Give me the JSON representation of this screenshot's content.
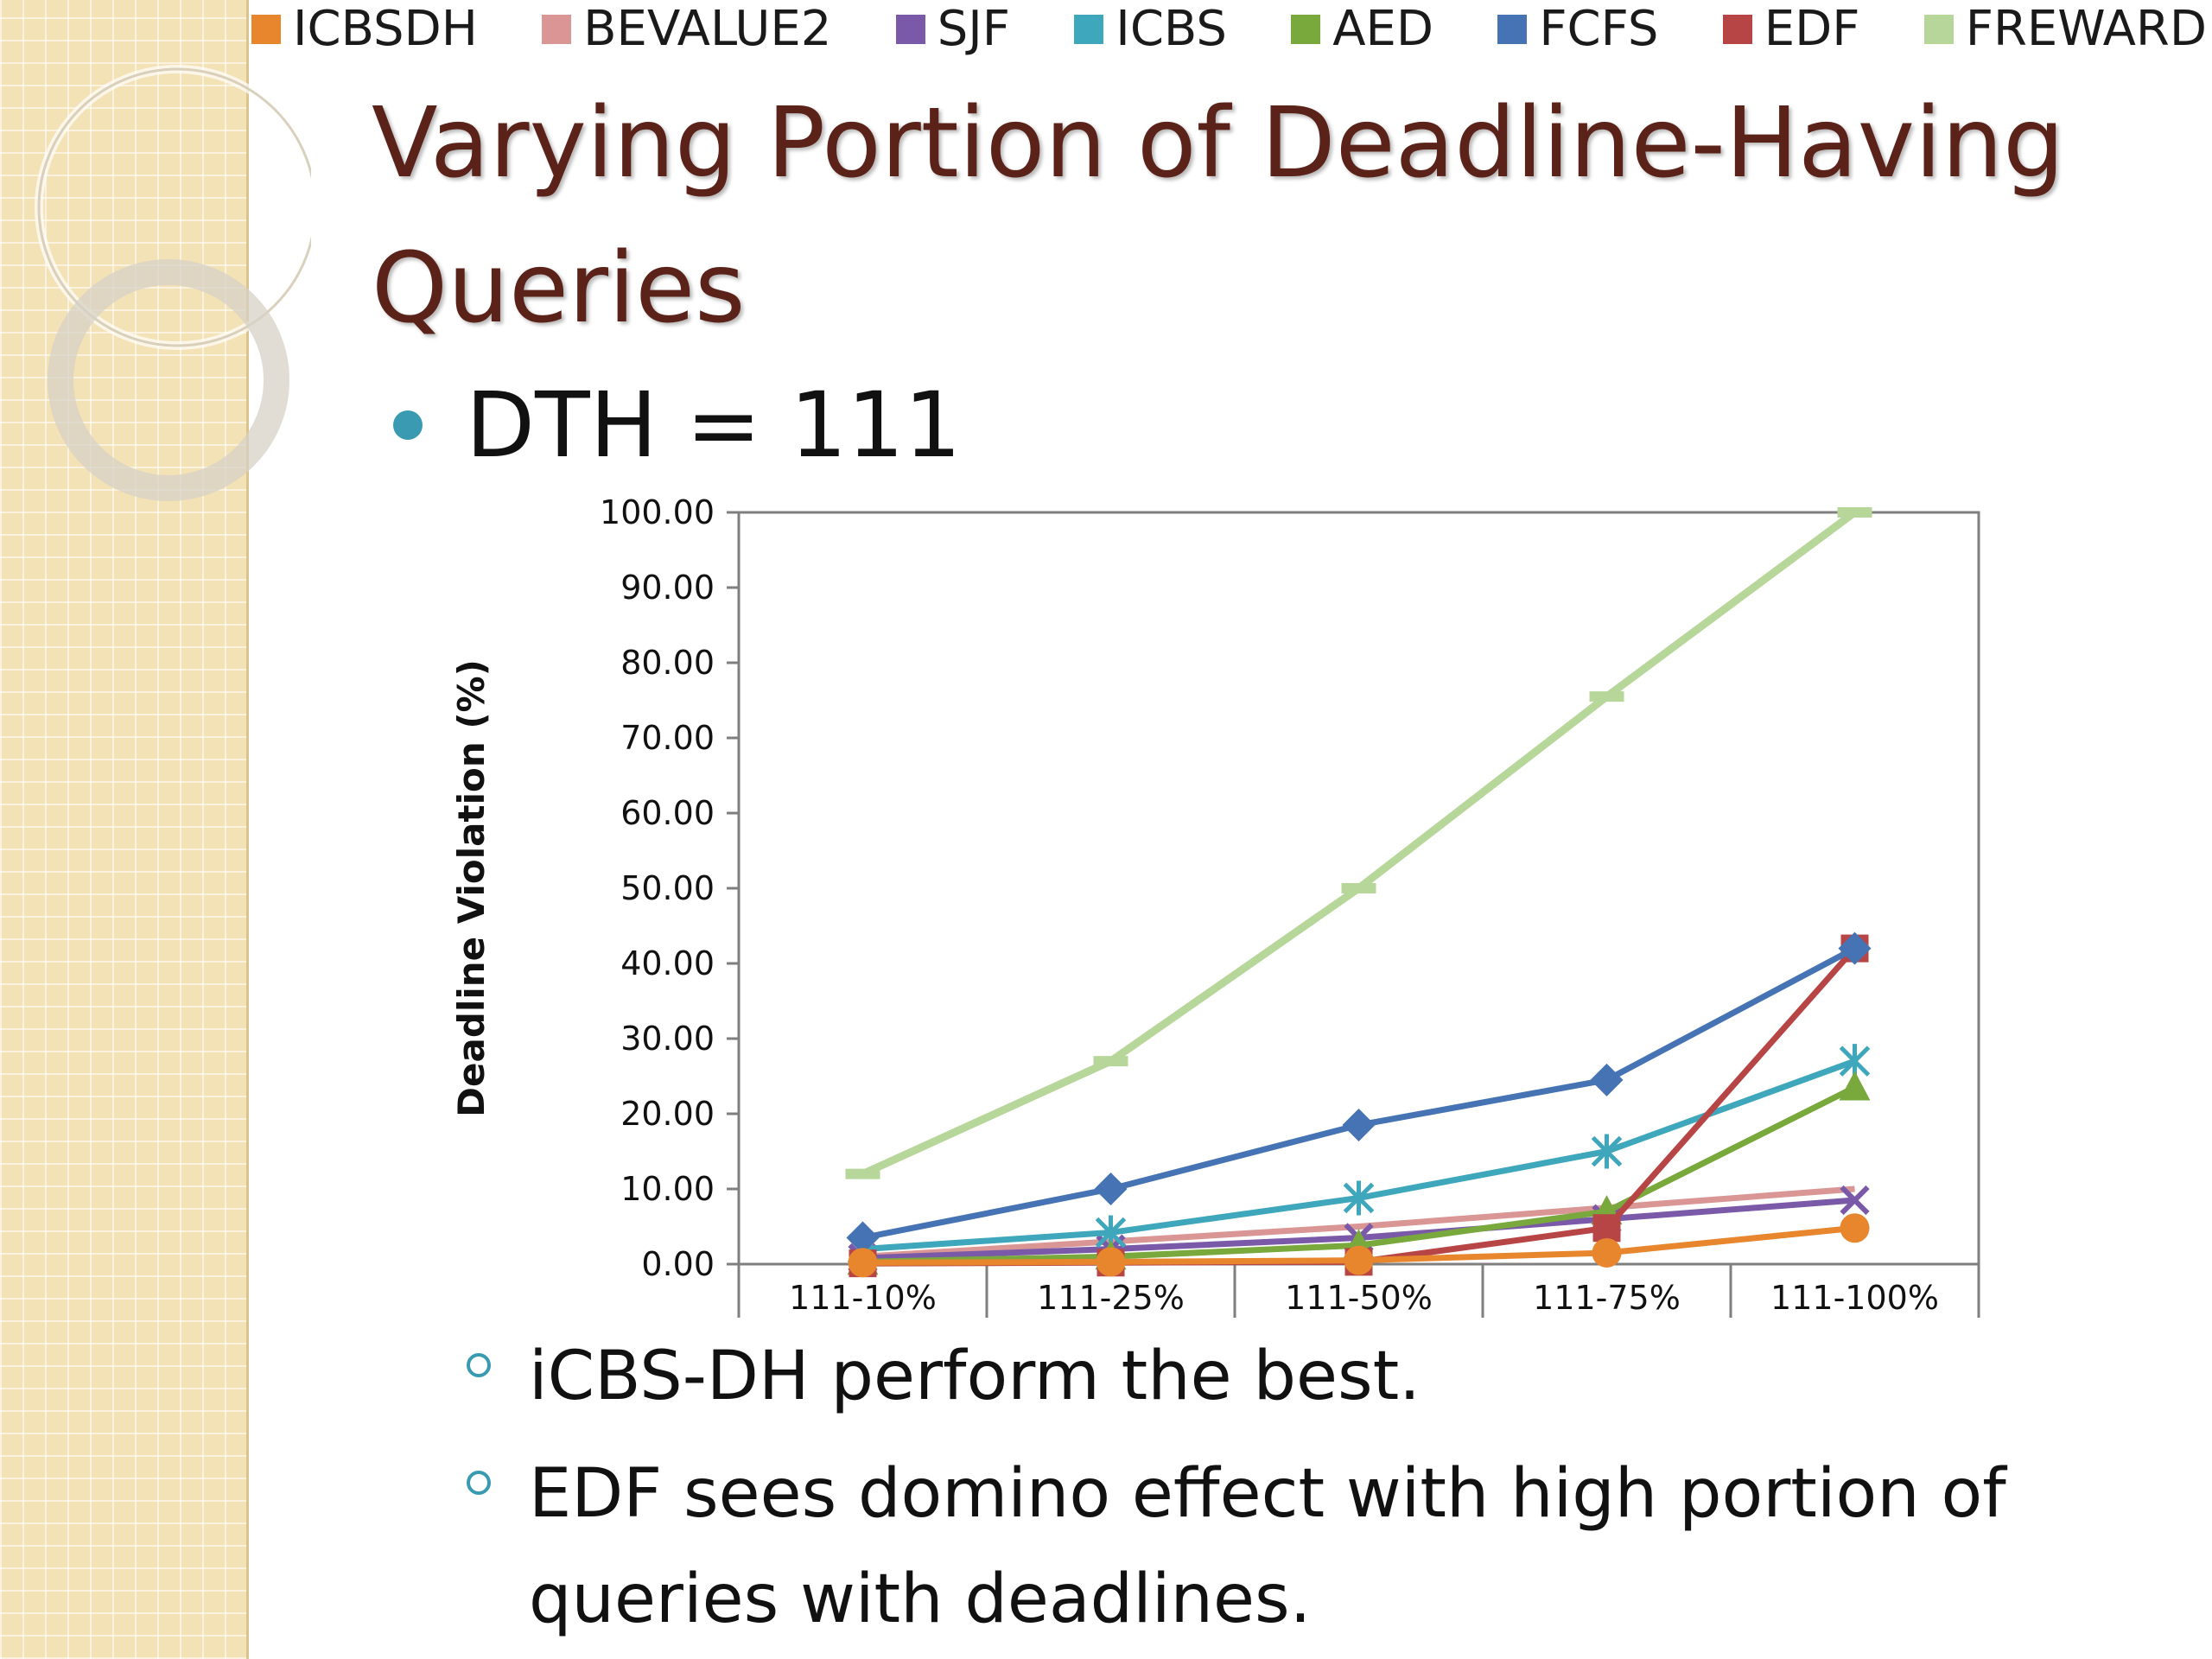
{
  "slide": {
    "title": "Varying Portion of Deadline-Having Queries",
    "bullet": "DTH = 111",
    "sub_bullets": [
      "iCBS-DH perform the best.",
      "EDF sees domino effect with high portion of queries with deadlines."
    ]
  },
  "colors": {
    "title": "#5a2218",
    "bullet": "#3a9ab1",
    "strip": "#f3e2b6"
  },
  "chart_data": {
    "type": "line",
    "ylabel": "Deadline Violation (%)",
    "ylim": [
      0,
      100
    ],
    "yticks": [
      "0.00",
      "10.00",
      "20.00",
      "30.00",
      "40.00",
      "50.00",
      "60.00",
      "70.00",
      "80.00",
      "90.00",
      "100.00"
    ],
    "categories": [
      "111-10%",
      "111-25%",
      "111-50%",
      "111-75%",
      "111-100%"
    ],
    "legend_position": "top",
    "grid": false,
    "series": [
      {
        "name": "ICBSDH",
        "color": "#e8862e",
        "marker": "circle",
        "values": [
          0.2,
          0.3,
          0.5,
          1.5,
          4.8
        ]
      },
      {
        "name": "BEVALUE2",
        "color": "#d99694",
        "marker": "none",
        "values": [
          1.0,
          3.0,
          5.0,
          7.5,
          10.0
        ]
      },
      {
        "name": "SJF",
        "color": "#7a5aa8",
        "marker": "x",
        "values": [
          0.8,
          2.0,
          3.5,
          6.0,
          8.5
        ]
      },
      {
        "name": "ICBS",
        "color": "#3fa7bb",
        "marker": "star",
        "values": [
          2.0,
          4.2,
          8.8,
          15.0,
          27.0
        ]
      },
      {
        "name": "AED",
        "color": "#79a83d",
        "marker": "triangle",
        "values": [
          0.3,
          1.0,
          2.5,
          7.0,
          23.5
        ]
      },
      {
        "name": "FCFS",
        "color": "#4573b3",
        "marker": "diamond",
        "values": [
          3.5,
          10.0,
          18.5,
          24.5,
          42.0
        ]
      },
      {
        "name": "EDF",
        "color": "#b84545",
        "marker": "square",
        "values": [
          0.1,
          0.2,
          0.3,
          4.8,
          42.0
        ]
      },
      {
        "name": "FREWARD",
        "color": "#b7d79a",
        "marker": "dash",
        "values": [
          12.0,
          27.0,
          50.0,
          75.5,
          100.0
        ]
      }
    ]
  }
}
